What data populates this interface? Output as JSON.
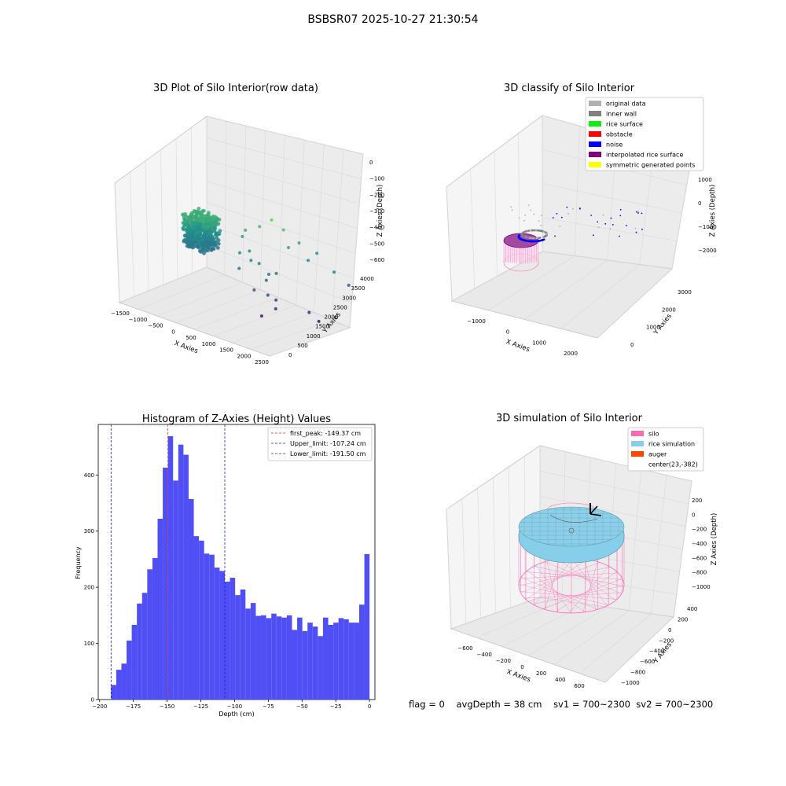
{
  "figure_title": "BSBSR07 2025-10-27 21:30:54",
  "status": {
    "flag": "flag = 0",
    "avg_depth": "avgDepth = 38 cm",
    "sv1": "sv1 = 700~2300",
    "sv2": "sv2 = 700~2300"
  },
  "colors": {
    "bar": "#4f4ff5",
    "peak_line": "#e03030",
    "limit_line": "#2020d0",
    "grid": "#d9d9d9",
    "pane_light": "#f4f4f4",
    "pane_dark": "#e6e6e6",
    "silo": "#ff69b4",
    "rice_simulation": "#87ceeb",
    "auger": "#ff4500",
    "rice_surface_green": "#10ee10",
    "obstacle": "#ff0000",
    "noise": "#0000ff",
    "inner_wall": "#808080",
    "original_data": "#b0b0b0",
    "interpolated": "#800080",
    "symmetric": "#ffff00"
  },
  "chart_data": [
    {
      "type": "scatter",
      "title": "3D Plot of Silo Interior(row data)",
      "xlabel": "X Axies",
      "ylabel": "Y Axies",
      "zlabel": "Z Axies (Depth)",
      "x_ticks": [
        "−1500",
        "−1000",
        "−500",
        "0",
        "500",
        "1000",
        "1500",
        "2000",
        "2500"
      ],
      "y_ticks": [
        "0",
        "500",
        "1000",
        "1500",
        "2000",
        "2500",
        "3000",
        "3500",
        "4000"
      ],
      "z_ticks": [
        "0",
        "−100",
        "−200",
        "−300",
        "−400",
        "−500",
        "−600"
      ],
      "xlim": [
        -1500,
        2500
      ],
      "ylim": [
        0,
        4000
      ],
      "zlim": [
        -650,
        50
      ],
      "grid": true,
      "colormap": "viridis (by depth)",
      "points": [
        {
          "x": 380,
          "y": 2400,
          "z": -260
        },
        {
          "x": 520,
          "y": 2300,
          "z": -210
        },
        {
          "x": 780,
          "y": 2500,
          "z": -180
        },
        {
          "x": 1100,
          "y": 2500,
          "z": -120
        },
        {
          "x": 1300,
          "y": 2700,
          "z": -170
        },
        {
          "x": 1600,
          "y": 2900,
          "z": -230
        },
        {
          "x": 1900,
          "y": 3200,
          "z": -280
        },
        {
          "x": 1550,
          "y": 2500,
          "z": -240
        },
        {
          "x": 1900,
          "y": 2800,
          "z": -300
        },
        {
          "x": 2300,
          "y": 3300,
          "z": -360
        },
        {
          "x": 2400,
          "y": 3800,
          "z": -450
        },
        {
          "x": 1400,
          "y": 2200,
          "z": -380
        },
        {
          "x": 1250,
          "y": 2000,
          "z": -420
        },
        {
          "x": 1100,
          "y": 1700,
          "z": -470
        },
        {
          "x": 1350,
          "y": 1900,
          "z": -490
        },
        {
          "x": 1450,
          "y": 2100,
          "z": -520
        },
        {
          "x": 1500,
          "y": 2000,
          "z": -560
        },
        {
          "x": 1300,
          "y": 1700,
          "z": -600
        },
        {
          "x": 2100,
          "y": 2500,
          "z": -560
        },
        {
          "x": 2300,
          "y": 2600,
          "z": -600
        },
        {
          "x": 900,
          "y": 1900,
          "z": -330
        },
        {
          "x": 800,
          "y": 2000,
          "z": -290
        },
        {
          "x": 600,
          "y": 1900,
          "z": -310
        },
        {
          "x": 1000,
          "y": 2100,
          "z": -350
        },
        {
          "x": 700,
          "y": 1700,
          "z": -380
        },
        {
          "x": 1200,
          "y": 2200,
          "z": -400
        }
      ],
      "dense_cluster": {
        "x_range": [
          -900,
          -300
        ],
        "y_range": [
          1800,
          2600
        ],
        "z_range": [
          -380,
          -200
        ]
      }
    },
    {
      "type": "scatter",
      "title": "3D classify of Silo Interior",
      "xlabel": "X Axies",
      "ylabel": "Y Axies",
      "zlabel": "Z Axies (Depth)",
      "x_ticks": [
        "−1000",
        "0",
        "1000",
        "2000"
      ],
      "y_ticks": [
        "0",
        "1000",
        "2000",
        "3000"
      ],
      "z_ticks": [
        "1000",
        "0",
        "−1000",
        "−2000"
      ],
      "grid": true,
      "legend_position": "top-right",
      "legend": [
        {
          "label": "original data",
          "color": "#b0b0b0"
        },
        {
          "label": "inner wall",
          "color": "#808080"
        },
        {
          "label": "rice surface",
          "color": "#10ee10"
        },
        {
          "label": "obstacle",
          "color": "#ff0000"
        },
        {
          "label": "noise",
          "color": "#0000ff"
        },
        {
          "label": "interpolated rice surface",
          "color": "#800080"
        },
        {
          "label": "symmetric generated points",
          "color": "#ffff00"
        }
      ]
    },
    {
      "type": "bar",
      "title": "Histogram of Z-Axies (Height) Values",
      "xlabel": "Depth (cm)",
      "ylabel": "Frequency",
      "xlim": [
        -201,
        4
      ],
      "ylim": [
        0,
        490
      ],
      "x_ticks": [
        "−200",
        "−175",
        "−150",
        "−125",
        "−100",
        "−75",
        "−50",
        "−25",
        "0"
      ],
      "x_tick_values": [
        -200,
        -175,
        -150,
        -125,
        -100,
        -75,
        -50,
        -25,
        0
      ],
      "y_ticks": [
        "0",
        "100",
        "200",
        "300",
        "400"
      ],
      "y_tick_values": [
        0,
        100,
        200,
        300,
        400
      ],
      "bin_start": -191.5,
      "bin_width": 3.83,
      "values": [
        26,
        53,
        64,
        105,
        133,
        171,
        190,
        232,
        252,
        322,
        413,
        469,
        390,
        454,
        436,
        357,
        291,
        283,
        260,
        258,
        235,
        229,
        210,
        217,
        186,
        196,
        162,
        172,
        149,
        150,
        145,
        153,
        148,
        146,
        150,
        124,
        146,
        122,
        137,
        130,
        113,
        146,
        133,
        137,
        145,
        143,
        137,
        137,
        169,
        259
      ],
      "vlines": [
        {
          "x": -149.37,
          "label": "first_peak: -149.37 cm",
          "color": "#e03030"
        },
        {
          "x": -107.24,
          "label": "Upper_limit: -107.24 cm",
          "color": "#2020d0"
        },
        {
          "x": -191.5,
          "label": "Lower_limit: -191.50 cm",
          "color": "#2020d0"
        }
      ],
      "legend_position": "top-right"
    },
    {
      "type": "3d-surface",
      "title": "3D simulation of Silo Interior",
      "xlabel": "X Axies",
      "ylabel": "Y Axies",
      "zlabel": "Z Axies (Depth)",
      "x_ticks": [
        "−600",
        "−400",
        "−200",
        "0",
        "200",
        "400",
        "600"
      ],
      "y_ticks": [
        "−1000",
        "−800",
        "−600",
        "−400",
        "−200",
        "0",
        "200",
        "400"
      ],
      "z_ticks": [
        "200",
        "0",
        "−200",
        "−400",
        "−600",
        "−800",
        "−1000"
      ],
      "grid": true,
      "legend_position": "top-right",
      "legend": [
        {
          "label": "silo",
          "color": "#ff69b4"
        },
        {
          "label": "rice simulation",
          "color": "#87ceeb"
        },
        {
          "label": "auger",
          "color": "#ff4500"
        },
        {
          "label": "center(23,-382)",
          "color": ""
        }
      ]
    }
  ]
}
